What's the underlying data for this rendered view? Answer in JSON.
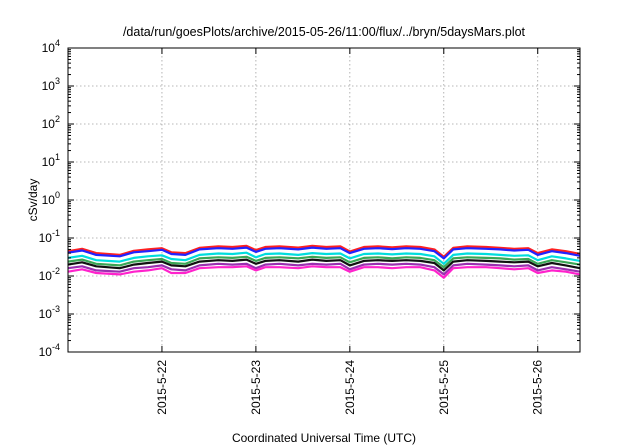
{
  "chart_data": {
    "type": "line",
    "title": "/data/run/goesPlots/archive/2015-05-26/11:00/flux/../bryn/5daysMars.plot",
    "xlabel": "Coordinated Universal Time (UTC)",
    "ylabel": "cSv/day",
    "yscale": "log",
    "ylim": [
      0.0001,
      10000
    ],
    "xlim": [
      0,
      5.45
    ],
    "x_ticks": [
      {
        "x": 1,
        "label": "2015-5-22"
      },
      {
        "x": 2,
        "label": "2015-5-23"
      },
      {
        "x": 3,
        "label": "2015-5-24"
      },
      {
        "x": 4,
        "label": "2015-5-25"
      },
      {
        "x": 5,
        "label": "2015-5-26"
      }
    ],
    "y_ticks": [
      {
        "value": 0.0001,
        "base": "10",
        "exp": "-4"
      },
      {
        "value": 0.001,
        "base": "10",
        "exp": "-3"
      },
      {
        "value": 0.01,
        "base": "10",
        "exp": "-2"
      },
      {
        "value": 0.1,
        "base": "10",
        "exp": "-1"
      },
      {
        "value": 1,
        "base": "10",
        "exp": "0"
      },
      {
        "value": 10,
        "base": "10",
        "exp": "1"
      },
      {
        "value": 100,
        "base": "10",
        "exp": "2"
      },
      {
        "value": 1000,
        "base": "10",
        "exp": "3"
      },
      {
        "value": 10000,
        "base": "10",
        "exp": "4"
      }
    ],
    "grid": true,
    "x": [
      0.0,
      0.15,
      0.3,
      0.55,
      0.7,
      0.85,
      1.0,
      1.1,
      1.25,
      1.4,
      1.6,
      1.75,
      1.9,
      2.0,
      2.1,
      2.25,
      2.45,
      2.6,
      2.75,
      2.9,
      3.0,
      3.15,
      3.3,
      3.45,
      3.6,
      3.75,
      3.9,
      4.0,
      4.1,
      4.25,
      4.45,
      4.6,
      4.75,
      4.9,
      5.0,
      5.15,
      5.3,
      5.45
    ],
    "series": [
      {
        "color": "#ff2020",
        "values": [
          0.045,
          0.052,
          0.04,
          0.036,
          0.046,
          0.05,
          0.054,
          0.042,
          0.04,
          0.055,
          0.06,
          0.058,
          0.062,
          0.048,
          0.058,
          0.06,
          0.056,
          0.062,
          0.058,
          0.06,
          0.044,
          0.058,
          0.06,
          0.057,
          0.06,
          0.058,
          0.05,
          0.032,
          0.055,
          0.06,
          0.058,
          0.055,
          0.052,
          0.054,
          0.04,
          0.05,
          0.045,
          0.038
        ]
      },
      {
        "color": "#2222ff",
        "values": [
          0.041,
          0.047,
          0.036,
          0.033,
          0.042,
          0.045,
          0.049,
          0.038,
          0.036,
          0.05,
          0.054,
          0.052,
          0.056,
          0.043,
          0.052,
          0.054,
          0.05,
          0.056,
          0.052,
          0.054,
          0.04,
          0.052,
          0.054,
          0.051,
          0.054,
          0.052,
          0.045,
          0.029,
          0.05,
          0.054,
          0.052,
          0.05,
          0.047,
          0.049,
          0.036,
          0.045,
          0.04,
          0.034
        ]
      },
      {
        "color": "#00dddd",
        "values": [
          0.03,
          0.034,
          0.026,
          0.024,
          0.03,
          0.033,
          0.035,
          0.028,
          0.026,
          0.036,
          0.039,
          0.038,
          0.041,
          0.031,
          0.038,
          0.039,
          0.036,
          0.04,
          0.038,
          0.039,
          0.029,
          0.038,
          0.039,
          0.037,
          0.039,
          0.038,
          0.033,
          0.021,
          0.036,
          0.039,
          0.038,
          0.036,
          0.034,
          0.035,
          0.026,
          0.033,
          0.029,
          0.025
        ]
      },
      {
        "color": "#3aa655",
        "values": [
          0.024,
          0.027,
          0.021,
          0.019,
          0.024,
          0.026,
          0.028,
          0.022,
          0.021,
          0.029,
          0.031,
          0.03,
          0.032,
          0.025,
          0.03,
          0.031,
          0.029,
          0.032,
          0.03,
          0.031,
          0.023,
          0.03,
          0.031,
          0.029,
          0.031,
          0.03,
          0.026,
          0.017,
          0.029,
          0.031,
          0.03,
          0.029,
          0.027,
          0.028,
          0.021,
          0.026,
          0.023,
          0.02
        ]
      },
      {
        "color": "#111111",
        "values": [
          0.02,
          0.023,
          0.018,
          0.016,
          0.02,
          0.022,
          0.024,
          0.019,
          0.018,
          0.024,
          0.026,
          0.025,
          0.027,
          0.021,
          0.025,
          0.026,
          0.024,
          0.027,
          0.025,
          0.026,
          0.019,
          0.025,
          0.026,
          0.025,
          0.026,
          0.025,
          0.022,
          0.014,
          0.024,
          0.026,
          0.025,
          0.024,
          0.023,
          0.024,
          0.018,
          0.022,
          0.019,
          0.016
        ]
      },
      {
        "color": "#9a2fb0",
        "values": [
          0.016,
          0.018,
          0.014,
          0.013,
          0.016,
          0.017,
          0.019,
          0.015,
          0.014,
          0.019,
          0.021,
          0.02,
          0.021,
          0.016,
          0.02,
          0.021,
          0.019,
          0.021,
          0.02,
          0.021,
          0.015,
          0.02,
          0.021,
          0.02,
          0.021,
          0.02,
          0.017,
          0.011,
          0.019,
          0.021,
          0.02,
          0.019,
          0.018,
          0.019,
          0.014,
          0.017,
          0.015,
          0.013
        ]
      },
      {
        "color": "#ff22cc",
        "values": [
          0.013,
          0.015,
          0.012,
          0.011,
          0.013,
          0.014,
          0.016,
          0.012,
          0.012,
          0.016,
          0.017,
          0.017,
          0.018,
          0.014,
          0.017,
          0.017,
          0.016,
          0.018,
          0.017,
          0.017,
          0.013,
          0.017,
          0.017,
          0.016,
          0.017,
          0.017,
          0.014,
          0.009,
          0.016,
          0.017,
          0.017,
          0.016,
          0.015,
          0.016,
          0.012,
          0.014,
          0.013,
          0.011
        ]
      }
    ]
  }
}
